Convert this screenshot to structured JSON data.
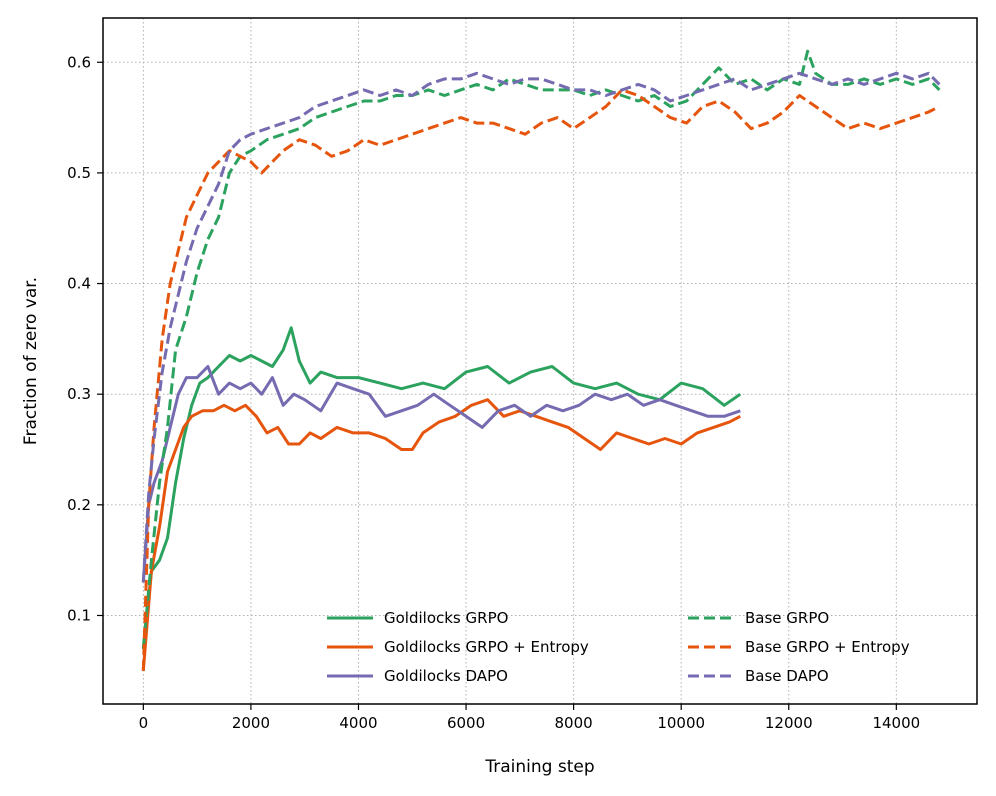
{
  "chart_data": {
    "type": "line",
    "title": "",
    "xlabel": "Training step",
    "ylabel": "Fraction of zero var.",
    "xlim": [
      -750,
      15500
    ],
    "ylim": [
      0.02,
      0.64
    ],
    "xticks": [
      0,
      2000,
      4000,
      6000,
      8000,
      10000,
      12000,
      14000
    ],
    "yticks": [
      0.1,
      0.2,
      0.3,
      0.4,
      0.5,
      0.6
    ],
    "xtick_labels": [
      "0",
      "2000",
      "4000",
      "6000",
      "8000",
      "10000",
      "12000",
      "14000"
    ],
    "ytick_labels": [
      "0.1",
      "0.2",
      "0.3",
      "0.4",
      "0.5",
      "0.6"
    ],
    "grid": true,
    "legend_position": "bottom-right",
    "series": [
      {
        "name": "Goldilocks GRPO",
        "color": "#2ca25f",
        "dash": "solid",
        "x": [
          0,
          150,
          300,
          450,
          600,
          750,
          900,
          1050,
          1200,
          1400,
          1600,
          1800,
          2000,
          2200,
          2400,
          2600,
          2750,
          2900,
          3100,
          3300,
          3600,
          4000,
          4400,
          4800,
          5200,
          5600,
          6000,
          6400,
          6800,
          7200,
          7600,
          8000,
          8400,
          8800,
          9200,
          9600,
          10000,
          10400,
          10800,
          11100
        ],
        "y": [
          0.07,
          0.14,
          0.15,
          0.17,
          0.22,
          0.26,
          0.29,
          0.31,
          0.315,
          0.325,
          0.335,
          0.33,
          0.335,
          0.33,
          0.325,
          0.34,
          0.36,
          0.33,
          0.31,
          0.32,
          0.315,
          0.315,
          0.31,
          0.305,
          0.31,
          0.305,
          0.32,
          0.325,
          0.31,
          0.32,
          0.325,
          0.31,
          0.305,
          0.31,
          0.3,
          0.295,
          0.31,
          0.305,
          0.29,
          0.3
        ]
      },
      {
        "name": "Goldilocks GRPO + Entropy",
        "color": "#e6550d",
        "dash": "solid",
        "x": [
          0,
          150,
          300,
          450,
          600,
          750,
          900,
          1100,
          1300,
          1500,
          1700,
          1900,
          2100,
          2300,
          2500,
          2700,
          2900,
          3100,
          3300,
          3600,
          3900,
          4200,
          4500,
          4800,
          5000,
          5200,
          5500,
          5800,
          6100,
          6400,
          6700,
          7000,
          7300,
          7600,
          7900,
          8200,
          8500,
          8800,
          9100,
          9400,
          9700,
          10000,
          10300,
          10600,
          10900,
          11100
        ],
        "y": [
          0.05,
          0.14,
          0.18,
          0.23,
          0.25,
          0.27,
          0.28,
          0.285,
          0.285,
          0.29,
          0.285,
          0.29,
          0.28,
          0.265,
          0.27,
          0.255,
          0.255,
          0.265,
          0.26,
          0.27,
          0.265,
          0.265,
          0.26,
          0.25,
          0.25,
          0.265,
          0.275,
          0.28,
          0.29,
          0.295,
          0.28,
          0.285,
          0.28,
          0.275,
          0.27,
          0.26,
          0.25,
          0.265,
          0.26,
          0.255,
          0.26,
          0.255,
          0.265,
          0.27,
          0.275,
          0.28
        ]
      },
      {
        "name": "Goldilocks DAPO",
        "color": "#756bb1",
        "dash": "solid",
        "x": [
          0,
          100,
          200,
          350,
          500,
          650,
          800,
          1000,
          1200,
          1400,
          1600,
          1800,
          2000,
          2200,
          2400,
          2600,
          2800,
          3000,
          3300,
          3600,
          3900,
          4200,
          4500,
          4800,
          5100,
          5400,
          5700,
          6000,
          6300,
          6600,
          6900,
          7200,
          7500,
          7800,
          8100,
          8400,
          8700,
          9000,
          9300,
          9600,
          9900,
          10200,
          10500,
          10800,
          11100
        ],
        "y": [
          0.13,
          0.2,
          0.22,
          0.24,
          0.27,
          0.3,
          0.315,
          0.315,
          0.325,
          0.3,
          0.31,
          0.305,
          0.31,
          0.3,
          0.315,
          0.29,
          0.3,
          0.295,
          0.285,
          0.31,
          0.305,
          0.3,
          0.28,
          0.285,
          0.29,
          0.3,
          0.29,
          0.28,
          0.27,
          0.285,
          0.29,
          0.28,
          0.29,
          0.285,
          0.29,
          0.3,
          0.295,
          0.3,
          0.29,
          0.295,
          0.29,
          0.285,
          0.28,
          0.28,
          0.285
        ]
      },
      {
        "name": "Base GRPO",
        "color": "#2ca25f",
        "dash": "dashed",
        "x": [
          0,
          150,
          300,
          450,
          600,
          800,
          1000,
          1200,
          1400,
          1600,
          1800,
          2000,
          2300,
          2600,
          2900,
          3200,
          3500,
          3800,
          4100,
          4400,
          4700,
          5000,
          5300,
          5600,
          5900,
          6200,
          6500,
          6800,
          7100,
          7400,
          7700,
          8000,
          8300,
          8600,
          8900,
          9200,
          9500,
          9800,
          10100,
          10400,
          10700,
          11000,
          11300,
          11600,
          11900,
          12200,
          12350,
          12500,
          12800,
          13100,
          13400,
          13700,
          14000,
          14300,
          14600,
          14800
        ],
        "y": [
          0.07,
          0.15,
          0.22,
          0.27,
          0.34,
          0.37,
          0.41,
          0.44,
          0.46,
          0.5,
          0.515,
          0.52,
          0.53,
          0.535,
          0.54,
          0.55,
          0.555,
          0.56,
          0.565,
          0.565,
          0.57,
          0.57,
          0.575,
          0.57,
          0.575,
          0.58,
          0.575,
          0.585,
          0.58,
          0.575,
          0.575,
          0.575,
          0.57,
          0.575,
          0.57,
          0.565,
          0.57,
          0.56,
          0.565,
          0.58,
          0.595,
          0.58,
          0.585,
          0.575,
          0.585,
          0.58,
          0.61,
          0.59,
          0.58,
          0.58,
          0.585,
          0.58,
          0.585,
          0.58,
          0.585,
          0.575
        ]
      },
      {
        "name": "Base GRPO + Entropy",
        "color": "#e6550d",
        "dash": "dashed",
        "x": [
          0,
          100,
          200,
          350,
          500,
          650,
          800,
          1000,
          1200,
          1400,
          1600,
          1800,
          2000,
          2200,
          2400,
          2600,
          2900,
          3200,
          3500,
          3800,
          4100,
          4400,
          4700,
          5000,
          5300,
          5600,
          5900,
          6200,
          6500,
          6800,
          7100,
          7400,
          7700,
          8000,
          8300,
          8600,
          8900,
          9200,
          9500,
          9800,
          10100,
          10400,
          10700,
          11000,
          11300,
          11600,
          11900,
          12200,
          12500,
          12800,
          13100,
          13400,
          13700,
          14000,
          14300,
          14600,
          14800
        ],
        "y": [
          0.05,
          0.2,
          0.27,
          0.35,
          0.4,
          0.43,
          0.46,
          0.48,
          0.5,
          0.51,
          0.52,
          0.515,
          0.51,
          0.5,
          0.51,
          0.52,
          0.53,
          0.525,
          0.515,
          0.52,
          0.53,
          0.525,
          0.53,
          0.535,
          0.54,
          0.545,
          0.55,
          0.545,
          0.545,
          0.54,
          0.535,
          0.545,
          0.55,
          0.54,
          0.55,
          0.56,
          0.575,
          0.57,
          0.56,
          0.55,
          0.545,
          0.56,
          0.565,
          0.555,
          0.54,
          0.545,
          0.555,
          0.57,
          0.56,
          0.55,
          0.54,
          0.545,
          0.54,
          0.545,
          0.55,
          0.555,
          0.56
        ]
      },
      {
        "name": "Base DAPO",
        "color": "#756bb1",
        "dash": "dashed",
        "x": [
          0,
          100,
          200,
          350,
          500,
          650,
          800,
          1000,
          1200,
          1400,
          1600,
          1800,
          2000,
          2300,
          2600,
          2900,
          3200,
          3500,
          3800,
          4100,
          4400,
          4700,
          5000,
          5300,
          5600,
          5900,
          6200,
          6500,
          6800,
          7100,
          7400,
          7700,
          8000,
          8300,
          8600,
          8900,
          9200,
          9500,
          9800,
          10100,
          10400,
          10700,
          11000,
          11300,
          11600,
          11900,
          12200,
          12500,
          12800,
          13100,
          13400,
          13700,
          14000,
          14300,
          14600,
          14800
        ],
        "y": [
          0.13,
          0.21,
          0.26,
          0.32,
          0.36,
          0.39,
          0.42,
          0.45,
          0.47,
          0.49,
          0.52,
          0.53,
          0.535,
          0.54,
          0.545,
          0.55,
          0.56,
          0.565,
          0.57,
          0.575,
          0.57,
          0.575,
          0.57,
          0.58,
          0.585,
          0.585,
          0.59,
          0.585,
          0.58,
          0.585,
          0.585,
          0.58,
          0.575,
          0.575,
          0.57,
          0.575,
          0.58,
          0.575,
          0.565,
          0.57,
          0.575,
          0.58,
          0.585,
          0.575,
          0.58,
          0.585,
          0.59,
          0.585,
          0.58,
          0.585,
          0.58,
          0.585,
          0.59,
          0.585,
          0.59,
          0.58
        ]
      }
    ]
  }
}
